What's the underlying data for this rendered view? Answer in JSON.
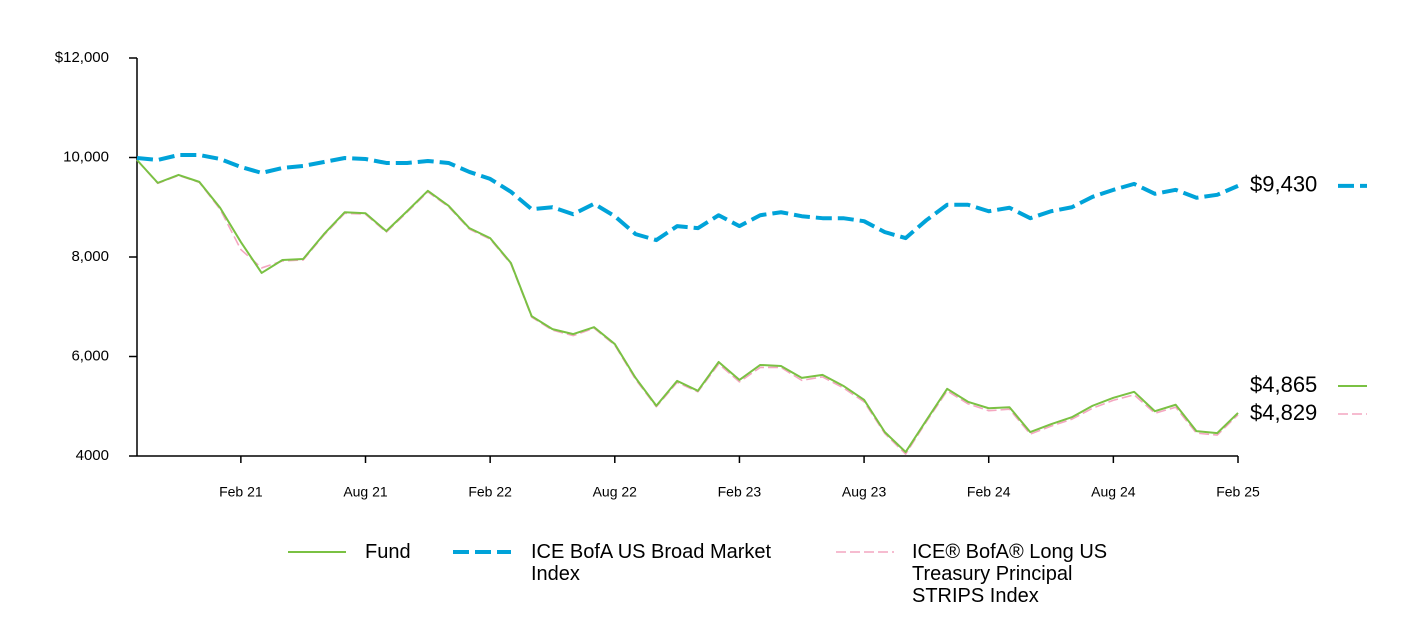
{
  "chart_data": {
    "type": "line",
    "categories": [
      null,
      null,
      null,
      null,
      null,
      "Feb 21",
      null,
      null,
      null,
      null,
      null,
      "Aug 21",
      null,
      null,
      null,
      null,
      null,
      "Feb 22",
      null,
      null,
      null,
      null,
      null,
      "Aug 22",
      null,
      null,
      null,
      null,
      null,
      "Feb 23",
      null,
      null,
      null,
      null,
      null,
      "Aug 23",
      null,
      null,
      null,
      null,
      null,
      "Feb 24",
      null,
      null,
      null,
      null,
      null,
      "Aug 24",
      null,
      null,
      null,
      null,
      null,
      "Feb 25"
    ],
    "ylim": [
      4000,
      12000
    ],
    "yticks": [
      4000,
      {
        "value": 6000,
        "label": "6,000"
      },
      {
        "value": 8000,
        "label": "8,000"
      },
      {
        "value": 10000,
        "label": "10,000"
      },
      {
        "value": 12000,
        "label": "$12,000"
      }
    ],
    "grid": false,
    "series": [
      {
        "name": "Fund",
        "color": "#7ac143",
        "dash": "solid",
        "values": [
          9950,
          9490,
          9650,
          9510,
          8990,
          8300,
          7680,
          7940,
          7960,
          8460,
          8900,
          8880,
          8520,
          8920,
          9330,
          9030,
          8580,
          8380,
          7880,
          6810,
          6550,
          6450,
          6590,
          6250,
          5570,
          5010,
          5510,
          5310,
          5890,
          5530,
          5830,
          5810,
          5570,
          5630,
          5410,
          5130,
          4480,
          4080,
          4720,
          5350,
          5090,
          4960,
          4980,
          4480,
          4640,
          4780,
          5010,
          5170,
          5290,
          4900,
          5030,
          4500,
          4460,
          4865
        ],
        "last_label": "$4,865"
      },
      {
        "name": "ICE BofA US Broad Market Index",
        "color": "#00a3d9",
        "dash": "long",
        "values": [
          9990,
          9950,
          10050,
          10050,
          9970,
          9810,
          9690,
          9790,
          9830,
          9910,
          9990,
          9970,
          9890,
          9890,
          9930,
          9890,
          9710,
          9570,
          9310,
          8960,
          9000,
          8860,
          9070,
          8820,
          8460,
          8340,
          8620,
          8580,
          8840,
          8620,
          8840,
          8900,
          8820,
          8780,
          8780,
          8720,
          8500,
          8380,
          8740,
          9050,
          9050,
          8920,
          8990,
          8780,
          8920,
          9000,
          9210,
          9350,
          9470,
          9270,
          9350,
          9190,
          9250,
          9430
        ],
        "last_label": "$9,430"
      },
      {
        "name": "ICE® BofA® Long US Treasury Principal STRIPS Index",
        "color": "#f4a6c0",
        "dash": "short",
        "values": [
          9950,
          9480,
          9640,
          9500,
          8960,
          8150,
          7780,
          7920,
          7940,
          8440,
          8880,
          8860,
          8500,
          8900,
          9310,
          9010,
          8560,
          8360,
          7860,
          6790,
          6530,
          6420,
          6570,
          6230,
          5540,
          4990,
          5480,
          5290,
          5850,
          5490,
          5780,
          5780,
          5520,
          5590,
          5370,
          5090,
          4450,
          4040,
          4690,
          5310,
          5050,
          4910,
          4940,
          4440,
          4600,
          4740,
          4960,
          5120,
          5230,
          4860,
          4980,
          4460,
          4420,
          4829
        ],
        "last_label": "$4,829"
      }
    ]
  }
}
